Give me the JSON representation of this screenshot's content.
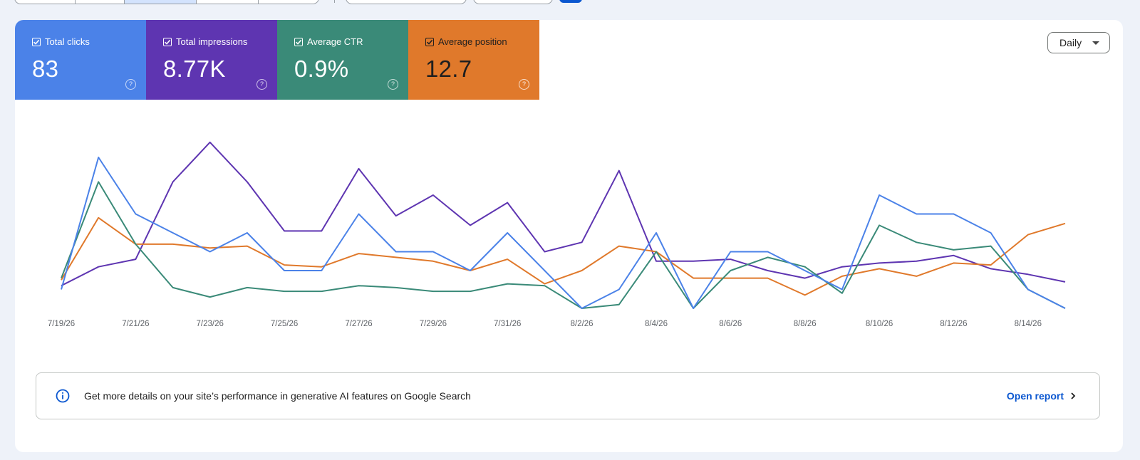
{
  "metrics": [
    {
      "label": "Total clicks",
      "value": "83",
      "color": "#4b82e8"
    },
    {
      "label": "Total impressions",
      "value": "8.77K",
      "color": "#5e35b1"
    },
    {
      "label": "Average CTR",
      "value": "0.9%",
      "color": "#3a8a78"
    },
    {
      "label": "Average position",
      "value": "12.7",
      "color": "#e0792b"
    }
  ],
  "granularity": {
    "selected": "Daily"
  },
  "chart_data": {
    "type": "line",
    "x": [
      "7/19/26",
      "7/20/26",
      "7/21/26",
      "7/22/26",
      "7/23/26",
      "7/24/26",
      "7/25/26",
      "7/26/26",
      "7/27/26",
      "7/28/26",
      "7/29/26",
      "7/30/26",
      "7/31/26",
      "8/1/26",
      "8/2/26",
      "8/3/26",
      "8/4/26",
      "8/5/26",
      "8/6/26",
      "8/7/26",
      "8/8/26",
      "8/9/26",
      "8/10/26",
      "8/11/26",
      "8/12/26",
      "8/13/26",
      "8/14/26",
      "8/15/26"
    ],
    "xtick_labels": [
      "7/19/26",
      "7/21/26",
      "7/23/26",
      "7/25/26",
      "7/27/26",
      "7/29/26",
      "7/31/26",
      "8/2/26",
      "8/4/26",
      "8/6/26",
      "8/8/26",
      "8/10/26",
      "8/12/26",
      "8/14/26"
    ],
    "grid": false,
    "legend": "none",
    "series": [
      {
        "name": "Total impressions",
        "color": "#5e35b1",
        "values": [
          0.12,
          0.22,
          0.26,
          0.67,
          0.88,
          0.67,
          0.41,
          0.41,
          0.74,
          0.49,
          0.6,
          0.44,
          0.56,
          0.3,
          0.35,
          0.73,
          0.25,
          0.25,
          0.26,
          0.2,
          0.16,
          0.22,
          0.24,
          0.25,
          0.28,
          0.21,
          0.18,
          0.14
        ]
      },
      {
        "name": "Average position",
        "color": "#e0792b",
        "values": [
          0.15,
          0.48,
          0.34,
          0.34,
          0.32,
          0.33,
          0.23,
          0.22,
          0.29,
          0.27,
          0.25,
          0.2,
          0.26,
          0.13,
          0.2,
          0.33,
          0.3,
          0.16,
          0.16,
          0.16,
          0.07,
          0.17,
          0.21,
          0.17,
          0.24,
          0.23,
          0.39,
          0.45
        ]
      },
      {
        "name": "Average CTR",
        "color": "#3a8a78",
        "values": [
          0.16,
          0.67,
          0.34,
          0.11,
          0.06,
          0.11,
          0.09,
          0.09,
          0.12,
          0.11,
          0.09,
          0.09,
          0.13,
          0.12,
          0.0,
          0.02,
          0.3,
          0.0,
          0.2,
          0.27,
          0.22,
          0.08,
          0.44,
          0.35,
          0.31,
          0.33,
          0.1,
          0.0
        ]
      },
      {
        "name": "Total clicks",
        "color": "#4b82e8",
        "values": [
          0.1,
          0.8,
          0.5,
          0.4,
          0.3,
          0.4,
          0.2,
          0.2,
          0.5,
          0.3,
          0.3,
          0.2,
          0.4,
          0.2,
          0.0,
          0.1,
          0.4,
          0.0,
          0.3,
          0.3,
          0.2,
          0.1,
          0.6,
          0.5,
          0.5,
          0.4,
          0.1,
          0.0
        ]
      }
    ]
  },
  "info": {
    "text": "Get more details on your site’s performance in generative AI features on Google Search",
    "link": "Open report"
  }
}
